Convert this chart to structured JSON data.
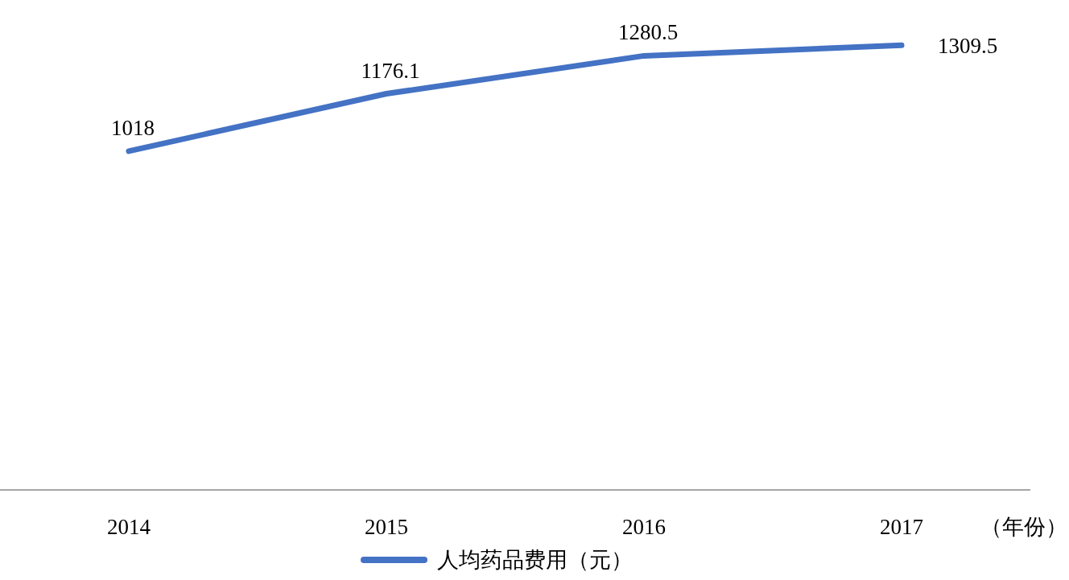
{
  "chart_data": {
    "type": "line",
    "categories": [
      "2014",
      "2015",
      "2016",
      "2017"
    ],
    "series": [
      {
        "name": "人均药品费用（元）",
        "color": "#4472c4",
        "values": [
          1018,
          1176.1,
          1280.5,
          1309.5
        ]
      }
    ],
    "xlabel": "（年份）",
    "tick_labels": "x",
    "data_labels": true,
    "legend": "bottom",
    "marker": "none"
  }
}
